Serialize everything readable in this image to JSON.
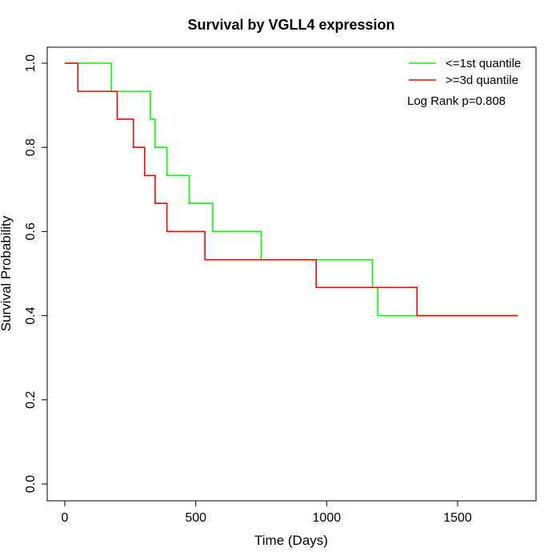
{
  "chart_data": {
    "type": "line",
    "step": true,
    "title": "Survival by VGLL4 expression",
    "xlabel": "Time (Days)",
    "ylabel": "Survival Probability",
    "xlim": [
      0,
      1780
    ],
    "ylim": [
      0,
      1.0
    ],
    "xticks": [
      0,
      500,
      1000,
      1500
    ],
    "xtick_labels": [
      "0",
      "500",
      "1000",
      "1500"
    ],
    "yticks": [
      0,
      0.2,
      0.4,
      0.6,
      0.8,
      1.0
    ],
    "ytick_labels": [
      "0.0",
      "0.2",
      "0.4",
      "0.6",
      "0.8",
      "1.0"
    ],
    "grid": false,
    "legend_position": "top-right",
    "annotation": "Log Rank p=0.808",
    "series": [
      {
        "name": "<=1st quantile",
        "color": "#00ff00",
        "x": [
          0,
          178,
          327,
          345,
          390,
          475,
          565,
          750,
          1175,
          1195,
          1730
        ],
        "y": [
          1.0,
          0.933,
          0.867,
          0.8,
          0.733,
          0.667,
          0.6,
          0.533,
          0.467,
          0.4,
          0.4
        ]
      },
      {
        "name": ">=3d quantile",
        "color": "#ff0000",
        "x": [
          0,
          50,
          200,
          262,
          305,
          345,
          390,
          535,
          960,
          1345,
          1730
        ],
        "y": [
          1.0,
          0.933,
          0.867,
          0.8,
          0.733,
          0.667,
          0.6,
          0.533,
          0.467,
          0.4,
          0.4
        ]
      }
    ]
  }
}
